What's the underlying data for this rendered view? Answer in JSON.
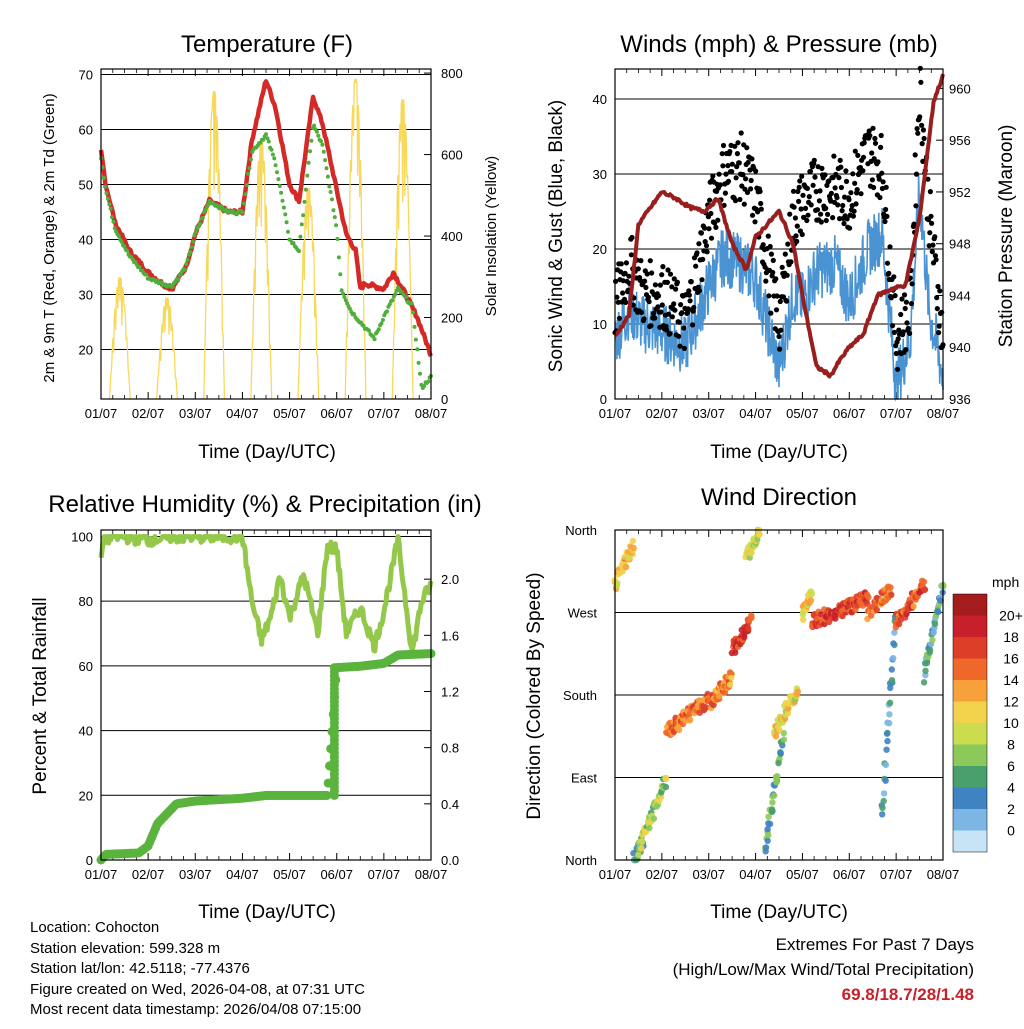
{
  "figure": {
    "x_tick_labels": [
      "01/07",
      "02/07",
      "03/07",
      "04/07",
      "05/07",
      "06/07",
      "07/07",
      "08/07"
    ],
    "x_axis_label": "Time (Day/UTC)"
  },
  "info": {
    "location": "Location: Cohocton",
    "elevation": "Station elevation: 599.328 m",
    "latlon": "Station lat/lon: 42.5118; -77.4376",
    "created": "Figure created on Wed, 2026-04-08, at 07:31 UTC",
    "recent": "Most recent data timestamp: 2026/04/08 07:15:00"
  },
  "extremes": {
    "line1": "Extremes For Past 7 Days",
    "line2": "(High/Low/Max Wind/Total Precipitation)",
    "values": "69.8/18.7/28/1.48"
  },
  "chart_data": [
    {
      "type": "line",
      "title": "Temperature (F)",
      "xlabel": "Time (Day/UTC)",
      "ylabel": "2m & 9m T (Red, Orange) & 2m Td (Green)",
      "ylabel_right": "Solar Insolation (Yellow)",
      "ylim": [
        11,
        71
      ],
      "ylim_right": [
        0,
        810
      ],
      "yticks": [
        20,
        30,
        40,
        50,
        60,
        70
      ],
      "yticks_right": [
        0,
        200,
        400,
        600,
        800
      ],
      "series": [
        {
          "name": "2m T",
          "color": "#d42a27",
          "x": [
            0,
            0.1,
            0.3,
            0.6,
            1,
            1.3,
            1.5,
            1.8,
            2,
            2.3,
            2.5,
            2.7,
            3,
            3.2,
            3.5,
            3.7,
            4,
            4.2,
            4.5,
            4.7,
            5,
            5.2,
            5.4,
            5.5,
            5.6,
            6,
            6.2,
            6.4,
            6.7,
            7
          ],
          "y": [
            56,
            50,
            43,
            38,
            34,
            32,
            31,
            35,
            41,
            47,
            46,
            45,
            45,
            58,
            69,
            64,
            50,
            47,
            66,
            61,
            49,
            41,
            38,
            31,
            32,
            31,
            34,
            31,
            26,
            19
          ]
        },
        {
          "name": "Td",
          "color": "#4fae3c",
          "x": [
            0,
            0.1,
            0.3,
            0.6,
            1,
            1.3,
            1.5,
            1.8,
            2,
            2.3,
            2.5,
            2.7,
            3,
            3.2,
            3.5,
            3.7,
            4,
            4.2,
            4.5,
            4.7,
            5,
            5.1,
            5.3,
            5.5,
            5.8,
            6,
            6.3,
            6.6,
            6.8,
            7
          ],
          "y": [
            55,
            49,
            42,
            37,
            33,
            32,
            31.5,
            35,
            41,
            47,
            46,
            45,
            45,
            56,
            59,
            54,
            40,
            38,
            61,
            57,
            42,
            31,
            27,
            25,
            22,
            26,
            31,
            28,
            13,
            15
          ]
        },
        {
          "name": "Solar Insolation",
          "color": "#f8d85a",
          "axis": "right",
          "peaks_x": [
            0.4,
            1.4,
            2.4,
            3.4,
            4.4,
            5.4,
            6.4
          ],
          "peaks_y": [
            300,
            250,
            760,
            640,
            520,
            790,
            740
          ]
        }
      ]
    },
    {
      "type": "line",
      "title": "Winds (mph) & Pressure (mb)",
      "xlabel": "Time (Day/UTC)",
      "ylabel": "Sonic Wind & Gust (Blue, Black)",
      "ylabel_right": "Station Pressure (Maroon)",
      "ylim": [
        0,
        44
      ],
      "ylim_right": [
        936,
        961.5
      ],
      "yticks": [
        0,
        10,
        20,
        30,
        40
      ],
      "yticks_right": [
        936,
        940,
        944,
        948,
        952,
        956,
        960
      ],
      "series": [
        {
          "name": "Sonic Wind",
          "color": "#4a93d2",
          "x": [
            0,
            0.3,
            0.6,
            1,
            1.5,
            2,
            2.3,
            2.7,
            3,
            3.5,
            3.8,
            4,
            4.3,
            4.7,
            5,
            5.4,
            5.7,
            6,
            6.3,
            6.5,
            6.7,
            7
          ],
          "y": [
            8,
            12,
            10,
            9,
            7,
            15,
            19,
            18,
            16,
            4,
            14,
            13,
            17,
            18,
            13,
            20,
            22,
            2,
            8,
            28,
            12,
            3
          ]
        },
        {
          "name": "Gust",
          "color": "#000000",
          "x": [
            0,
            0.3,
            0.6,
            1,
            1.5,
            2,
            2.3,
            2.7,
            3,
            3.5,
            3.8,
            4,
            4.3,
            4.7,
            5,
            5.4,
            5.7,
            6,
            6.3,
            6.5,
            6.7,
            7
          ],
          "y": [
            12,
            18,
            14,
            14,
            10,
            24,
            30,
            31,
            27,
            10,
            24,
            26,
            28,
            28,
            27,
            33,
            31,
            8,
            12,
            42,
            25,
            8
          ]
        },
        {
          "name": "Station Pressure",
          "color": "#991e1e",
          "axis": "right",
          "x": [
            0,
            0.3,
            0.5,
            1,
            1.3,
            1.6,
            1.9,
            2.2,
            2.5,
            2.8,
            3,
            3.5,
            3.8,
            4,
            4.3,
            4.6,
            4.8,
            5,
            5.3,
            5.6,
            5.9,
            6.2,
            6.5,
            6.8,
            7
          ],
          "y": [
            940.8,
            942.5,
            949.5,
            952,
            951.5,
            950.8,
            950.5,
            951.5,
            948,
            946,
            948.5,
            950.5,
            948,
            944,
            938.5,
            937.8,
            939,
            940,
            941,
            944,
            944.5,
            944.8,
            950,
            959,
            961
          ]
        }
      ]
    },
    {
      "type": "line",
      "title": "Relative Humidity (%) & Precipitation (in)",
      "xlabel": "Time (Day/UTC)",
      "ylabel": "Percent & Total Rainfall",
      "ylim": [
        0,
        102
      ],
      "ylim_right": [
        0,
        2.35
      ],
      "yticks": [
        0,
        20,
        40,
        60,
        80,
        100
      ],
      "yticks_right": [
        "0.0",
        "0.4",
        "0.8",
        "1.2",
        "1.6",
        "2.0"
      ],
      "series": [
        {
          "name": "Relative Humidity",
          "color": "#93c84a",
          "x": [
            0,
            0.05,
            0.2,
            0.5,
            1,
            1.5,
            2,
            2.5,
            3,
            3.2,
            3.4,
            3.6,
            3.8,
            4,
            4.3,
            4.6,
            4.8,
            5,
            5.2,
            5.5,
            5.8,
            6,
            6.3,
            6.6,
            6.8,
            7
          ],
          "y": [
            93,
            99,
            100,
            100,
            99,
            100,
            100,
            100,
            100,
            80,
            68,
            75,
            88,
            75,
            88,
            70,
            97,
            96,
            70,
            78,
            66,
            77,
            99,
            64,
            80,
            85
          ]
        },
        {
          "name": "Total Precipitation",
          "color": "#5ab33d",
          "axis": "right",
          "x": [
            0,
            0.1,
            0.8,
            1,
            1.2,
            1.6,
            2,
            2.5,
            3,
            3.5,
            4,
            4.5,
            4.8,
            5,
            5.5,
            6,
            6.3,
            7
          ],
          "y": [
            0,
            0.04,
            0.05,
            0.1,
            0.26,
            0.4,
            0.42,
            0.43,
            0.44,
            0.46,
            0.46,
            0.46,
            0.46,
            1.37,
            1.38,
            1.4,
            1.46,
            1.47
          ]
        }
      ]
    },
    {
      "type": "scatter",
      "title": "Wind Direction",
      "xlabel": "Time (Day/UTC)",
      "ylabel": "Direction (Colored By Speed)",
      "yticks": [
        "North",
        "East",
        "South",
        "West",
        "North"
      ],
      "ylim": [
        0,
        360
      ],
      "colorbar_title": "mph",
      "colorbar_labels": [
        "20+",
        "18",
        "16",
        "14",
        "12",
        "10",
        "8",
        "6",
        "4",
        "2",
        "0"
      ],
      "colorbar_colors": [
        "#a51c1c",
        "#c8202a",
        "#dd3e28",
        "#f0672a",
        "#f8a13a",
        "#f2d24a",
        "#cbdc4e",
        "#8cc95b",
        "#4aa06c",
        "#3f83c2",
        "#7cb6e4",
        "#c6e4f6"
      ],
      "clusters": [
        {
          "t0": 0.0,
          "t1": 0.4,
          "d0": 300,
          "d1": 345,
          "s": 13
        },
        {
          "t0": 0.4,
          "t1": 0.6,
          "d0": 0,
          "d1": 20,
          "s": 5
        },
        {
          "t0": 0.5,
          "t1": 1.1,
          "d0": 10,
          "d1": 90,
          "s": 9
        },
        {
          "t0": 1.1,
          "t1": 2.0,
          "d0": 140,
          "d1": 175,
          "s": 16
        },
        {
          "t0": 2.0,
          "t1": 2.5,
          "d0": 170,
          "d1": 200,
          "s": 15
        },
        {
          "t0": 2.5,
          "t1": 2.9,
          "d0": 230,
          "d1": 260,
          "s": 18
        },
        {
          "t0": 2.8,
          "t1": 3.1,
          "d0": 330,
          "d1": 360,
          "s": 10
        },
        {
          "t0": 3.2,
          "t1": 3.6,
          "d0": 10,
          "d1": 140,
          "s": 6
        },
        {
          "t0": 3.4,
          "t1": 3.9,
          "d0": 140,
          "d1": 185,
          "s": 11
        },
        {
          "t0": 4.0,
          "t1": 4.2,
          "d0": 270,
          "d1": 290,
          "s": 12
        },
        {
          "t0": 4.2,
          "t1": 5.4,
          "d0": 260,
          "d1": 285,
          "s": 18
        },
        {
          "t0": 5.4,
          "t1": 5.9,
          "d0": 270,
          "d1": 295,
          "s": 16
        },
        {
          "t0": 5.7,
          "t1": 6.0,
          "d0": 50,
          "d1": 270,
          "s": 4
        },
        {
          "t0": 6.0,
          "t1": 6.6,
          "d0": 260,
          "d1": 300,
          "s": 17
        },
        {
          "t0": 6.6,
          "t1": 7.0,
          "d0": 200,
          "d1": 300,
          "s": 5
        }
      ]
    }
  ]
}
